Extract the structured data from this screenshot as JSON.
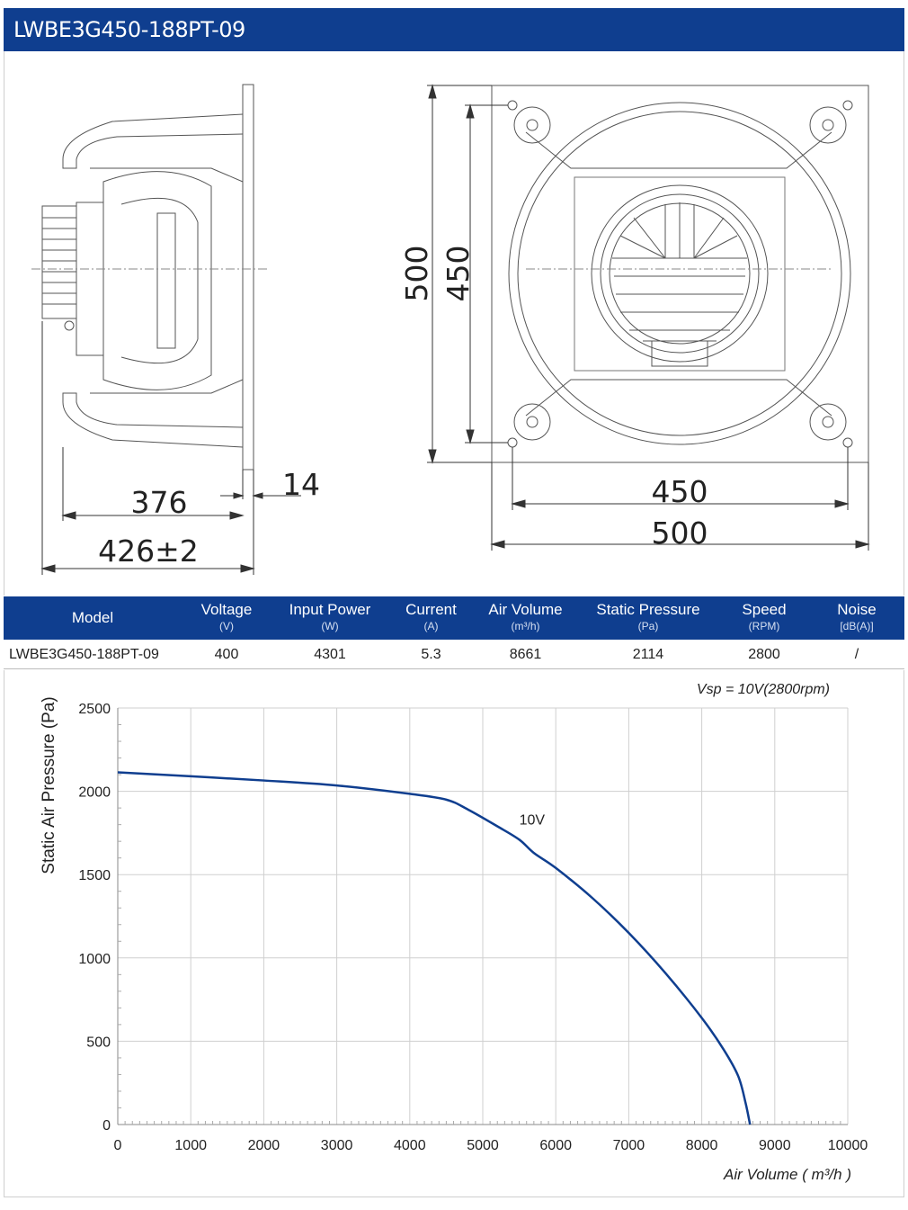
{
  "header": {
    "title": "LWBE3G450-188PT-09"
  },
  "drawing": {
    "dimensions": {
      "side_depth": "376",
      "flange": "14",
      "overall_depth": "426±2",
      "front_height_outer": "500",
      "front_height_inner": "450",
      "front_width_inner": "450",
      "front_width_outer": "500"
    }
  },
  "spec_table": {
    "headers": [
      {
        "label": "Model",
        "unit": ""
      },
      {
        "label": "Voltage",
        "unit": "(V)"
      },
      {
        "label": "Input Power",
        "unit": "(W)"
      },
      {
        "label": "Current",
        "unit": "(A)"
      },
      {
        "label": "Air Volume",
        "unit": "(m³/h)"
      },
      {
        "label": "Static Pressure",
        "unit": "(Pa)"
      },
      {
        "label": "Speed",
        "unit": "(RPM)"
      },
      {
        "label": "Noise",
        "unit": "[dB(A)]"
      }
    ],
    "rows": [
      [
        "LWBE3G450-188PT-09",
        "400",
        "4301",
        "5.3",
        "8661",
        "2114",
        "2800",
        "/"
      ]
    ]
  },
  "chart_data": {
    "type": "line",
    "title": "Vsp = 10V(2800rpm)",
    "xlabel": "Air Volume ( m³/h )",
    "ylabel": "Static Air Pressure  (Pa)",
    "xlim": [
      0,
      10000
    ],
    "ylim": [
      0,
      2500
    ],
    "x_ticks": [
      "0",
      "1000",
      "2000",
      "3000",
      "4000",
      "5000",
      "6000",
      "7000",
      "8000",
      "9000",
      "10000"
    ],
    "y_ticks": [
      "0",
      "500",
      "1000",
      "1500",
      "2000",
      "2500"
    ],
    "grid": true,
    "line_color": "#0f3e8f",
    "series": [
      {
        "name": "10V",
        "x": [
          0,
          1000,
          2000,
          3000,
          4000,
          4500,
          4800,
          5200,
          5500,
          5700,
          6000,
          6500,
          7000,
          7500,
          8000,
          8300,
          8500,
          8600,
          8661
        ],
        "y": [
          2114,
          2090,
          2065,
          2035,
          1985,
          1950,
          1890,
          1790,
          1710,
          1630,
          1540,
          1360,
          1150,
          910,
          640,
          450,
          290,
          130,
          0
        ]
      }
    ]
  }
}
